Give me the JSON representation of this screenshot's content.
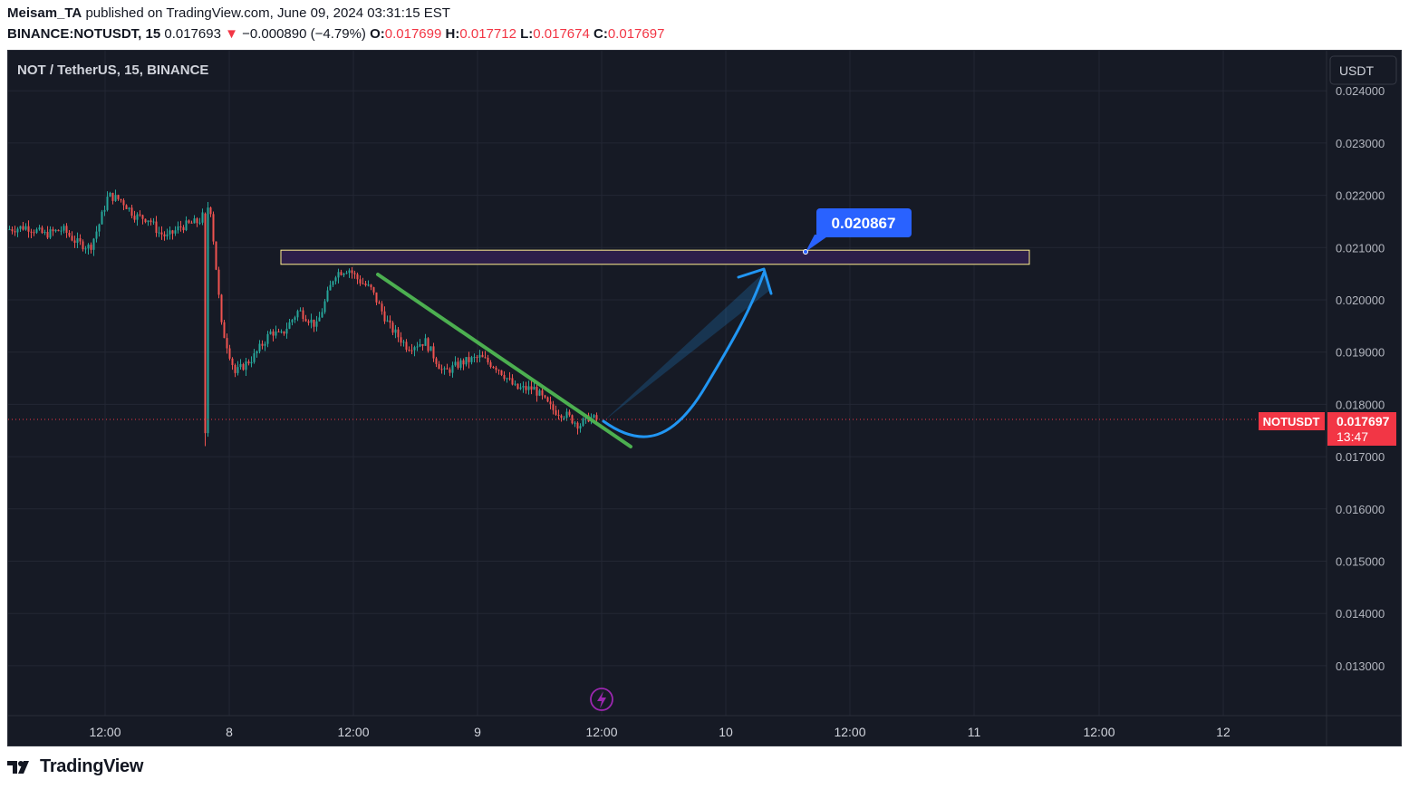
{
  "header": {
    "author": "Meisam_TA",
    "published_text": "published on TradingView.com, June 09, 2024 03:31:15 EST",
    "symbol_interval": "BINANCE:NOTUSDT, 15",
    "last": "0.017693",
    "change_arrow": "▼",
    "change": "−0.000890 (−4.79%)",
    "o_label": "O:",
    "o_value": "0.017699",
    "h_label": "H:",
    "h_value": "0.017712",
    "l_label": "L:",
    "l_value": "0.017674",
    "c_label": "C:",
    "c_value": "0.017697"
  },
  "chart": {
    "title": "NOT / TetherUS, 15, BINANCE",
    "currency": "USDT",
    "symbol_tag": "NOTUSDT",
    "price_tag": "0.017697",
    "countdown": "13:47",
    "target_label": "0.020867",
    "lightning_icon": "lightning-icon"
  },
  "colors": {
    "background": "#161a25",
    "grid": "#232734",
    "up": "#26a69a",
    "down": "#ef5350",
    "trendline": "#4caf50",
    "arrow": "#2196f3",
    "zone_fill": "#2d1f4a",
    "zone_border": "#ffee90",
    "price_tag": "#f23645",
    "callout": "#2962ff"
  },
  "footer": {
    "brand": "TradingView",
    "logo_icon": "tradingview-logo-icon"
  },
  "chart_data": {
    "type": "candlestick",
    "series": [
      {
        "name": "NOTUSDT",
        "x": [
          "Jun 7 07:00",
          "Jun 7 08:00",
          "Jun 7 09:00",
          "Jun 7 10:00",
          "Jun 7 11:00",
          "Jun 7 12:00",
          "Jun 7 13:00",
          "Jun 7 14:00",
          "Jun 7 15:00",
          "Jun 7 16:00",
          "Jun 7 17:00",
          "Jun 7 18:00",
          "Jun 7 19:00",
          "Jun 8 00:00",
          "Jun 8 02:00",
          "Jun 8 04:00",
          "Jun 8 06:00",
          "Jun 8 08:00",
          "Jun 8 10:00",
          "Jun 8 11:00",
          "Jun 8 12:00",
          "Jun 8 13:00",
          "Jun 8 14:00",
          "Jun 8 16:00",
          "Jun 8 18:00",
          "Jun 8 20:00",
          "Jun 8 22:00",
          "Jun 9 00:00",
          "Jun 9 02:00",
          "Jun 9 04:00",
          "Jun 9 06:00",
          "Jun 9 08:00",
          "Jun 9 09:00",
          "Jun 9 10:00",
          "Jun 9 11:00",
          "Jun 9 12:00"
        ],
        "close": [
          0.02135,
          0.0214,
          0.0213,
          0.0212,
          0.0211,
          0.0215,
          0.0219,
          0.022,
          0.02165,
          0.0216,
          0.0213,
          0.0216,
          0.022,
          0.0174,
          0.0185,
          0.019,
          0.0192,
          0.0196,
          0.0195,
          0.0204,
          0.0206,
          0.0205,
          0.0203,
          0.0196,
          0.019,
          0.0193,
          0.0189,
          0.0188,
          0.0186,
          0.0184,
          0.0183,
          0.0179,
          0.0178,
          0.0176,
          0.0178,
          0.0177
        ]
      }
    ],
    "horizontal_zone": {
      "from": 0.02068,
      "to": 0.02095
    },
    "target_price": 0.020867,
    "trendline": {
      "from": [
        "Jun 8 13:00",
        0.02045
      ],
      "to": [
        "Jun 9 13:00",
        0.0171
      ]
    },
    "projection": "curved arrow from 0.0177 rising to 0.0206",
    "last_price": 0.017697,
    "y_ticks": [
      "0.024000",
      "0.023000",
      "0.022000",
      "0.021000",
      "0.020000",
      "0.019000",
      "0.018000",
      "0.017000",
      "0.016000",
      "0.015000",
      "0.014000",
      "0.013000"
    ],
    "x_ticks": [
      "12:00",
      "8",
      "12:00",
      "9",
      "12:00",
      "10",
      "12:00",
      "11",
      "12:00",
      "12"
    ],
    "ylim": [
      0.0122,
      0.0243
    ]
  }
}
